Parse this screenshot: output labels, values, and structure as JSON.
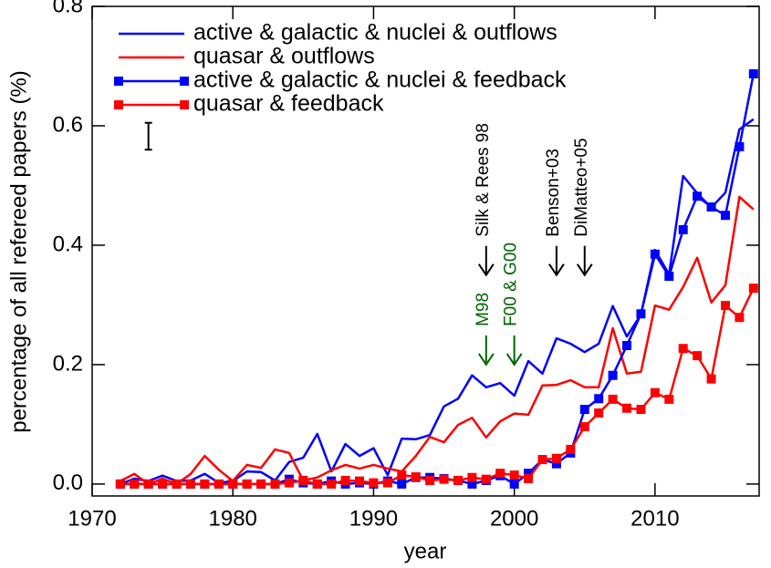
{
  "chart_data": {
    "type": "line",
    "xlabel": "year",
    "ylabel": "percentage of all refereed papers (%)",
    "x": [
      1972,
      1973,
      1974,
      1975,
      1976,
      1977,
      1978,
      1979,
      1980,
      1981,
      1982,
      1983,
      1984,
      1985,
      1986,
      1987,
      1988,
      1989,
      1990,
      1991,
      1992,
      1993,
      1994,
      1995,
      1996,
      1997,
      1998,
      1999,
      2000,
      2001,
      2002,
      2003,
      2004,
      2005,
      2006,
      2007,
      2008,
      2009,
      2010,
      2011,
      2012,
      2013,
      2014,
      2015,
      2016,
      2017
    ],
    "series": [
      {
        "name": "active & galactic & nuclei & outflows",
        "color": "#0000ff",
        "marker": "none",
        "values": [
          0,
          0.009,
          0.005,
          0.014,
          0.005,
          0.006,
          0.017,
          0.002,
          0.005,
          0.021,
          0.02,
          0.006,
          0.037,
          0.044,
          0.084,
          0.021,
          0.067,
          0.047,
          0.06,
          0.015,
          0.076,
          0.075,
          0.082,
          0.13,
          0.143,
          0.182,
          0.162,
          0.169,
          0.148,
          0.206,
          0.185,
          0.244,
          0.235,
          0.221,
          0.235,
          0.298,
          0.247,
          0.284,
          0.392,
          0.351,
          0.516,
          0.487,
          0.463,
          0.488,
          0.594,
          0.611
        ]
      },
      {
        "name": "quasar & outflows",
        "color": "#ff0000",
        "marker": "none",
        "values": [
          0.005,
          0.017,
          0,
          0.009,
          0,
          0.017,
          0.047,
          0.024,
          0.005,
          0.032,
          0.027,
          0.058,
          0.052,
          0.006,
          0.011,
          0.023,
          0.032,
          0.026,
          0.032,
          0.026,
          0.021,
          0.047,
          0.079,
          0.07,
          0.099,
          0.111,
          0.078,
          0.105,
          0.118,
          0.116,
          0.165,
          0.166,
          0.174,
          0.162,
          0.162,
          0.261,
          0.185,
          0.188,
          0.299,
          0.292,
          0.33,
          0.379,
          0.304,
          0.333,
          0.481,
          0.46
        ]
      },
      {
        "name": "active & galactic & nuclei & feedback",
        "color": "#0000ff",
        "marker": "square",
        "values": [
          0,
          0,
          0,
          0,
          0,
          0,
          0,
          0,
          0,
          0,
          0,
          0,
          0.008,
          0.002,
          0,
          0.005,
          0,
          0.002,
          0,
          0.005,
          0,
          0.011,
          0.011,
          0.009,
          0.006,
          0,
          0.006,
          0.014,
          0,
          0.018,
          0.041,
          0.034,
          0.052,
          0.125,
          0.143,
          0.182,
          0.232,
          0.285,
          0.385,
          0.348,
          0.426,
          0.482,
          0.464,
          0.45,
          0.565,
          0.687
        ]
      },
      {
        "name": "quasar & feedback",
        "color": "#ff0000",
        "marker": "square",
        "values": [
          0,
          0,
          0,
          0,
          0,
          0,
          0,
          0,
          0,
          0,
          0,
          0,
          0.002,
          0.006,
          0,
          0,
          0.006,
          0.005,
          0.002,
          0.002,
          0.015,
          0.012,
          0.006,
          0.008,
          0.006,
          0.011,
          0.008,
          0.018,
          0.015,
          0.009,
          0.041,
          0.043,
          0.058,
          0.096,
          0.119,
          0.142,
          0.127,
          0.125,
          0.153,
          0.142,
          0.227,
          0.215,
          0.176,
          0.299,
          0.279,
          0.328
        ]
      }
    ],
    "annotations": [
      {
        "text": "Silk & Rees 98",
        "x": 1998,
        "y": 0.35,
        "color": "#000000"
      },
      {
        "text": "M98",
        "x": 1998,
        "y": 0.2,
        "color": "#006400"
      },
      {
        "text": "F00 & G00",
        "x": 2000,
        "y": 0.2,
        "color": "#006400"
      },
      {
        "text": "Benson+03",
        "x": 2003,
        "y": 0.35,
        "color": "#000000"
      },
      {
        "text": "DiMatteo+05",
        "x": 2005,
        "y": 0.35,
        "color": "#000000"
      }
    ],
    "error_bar": {
      "x": 1974,
      "low": 0.56,
      "high": 0.605
    },
    "xlim": [
      1970,
      2017.4
    ],
    "ylim": [
      -0.02,
      0.8
    ],
    "xticks": [
      1970,
      1980,
      1990,
      2000,
      2010
    ],
    "yticks": [
      {
        "value": 0,
        "label": "0.0"
      },
      0.2,
      0.4,
      0.6,
      0.8
    ],
    "legend": "upper left"
  }
}
